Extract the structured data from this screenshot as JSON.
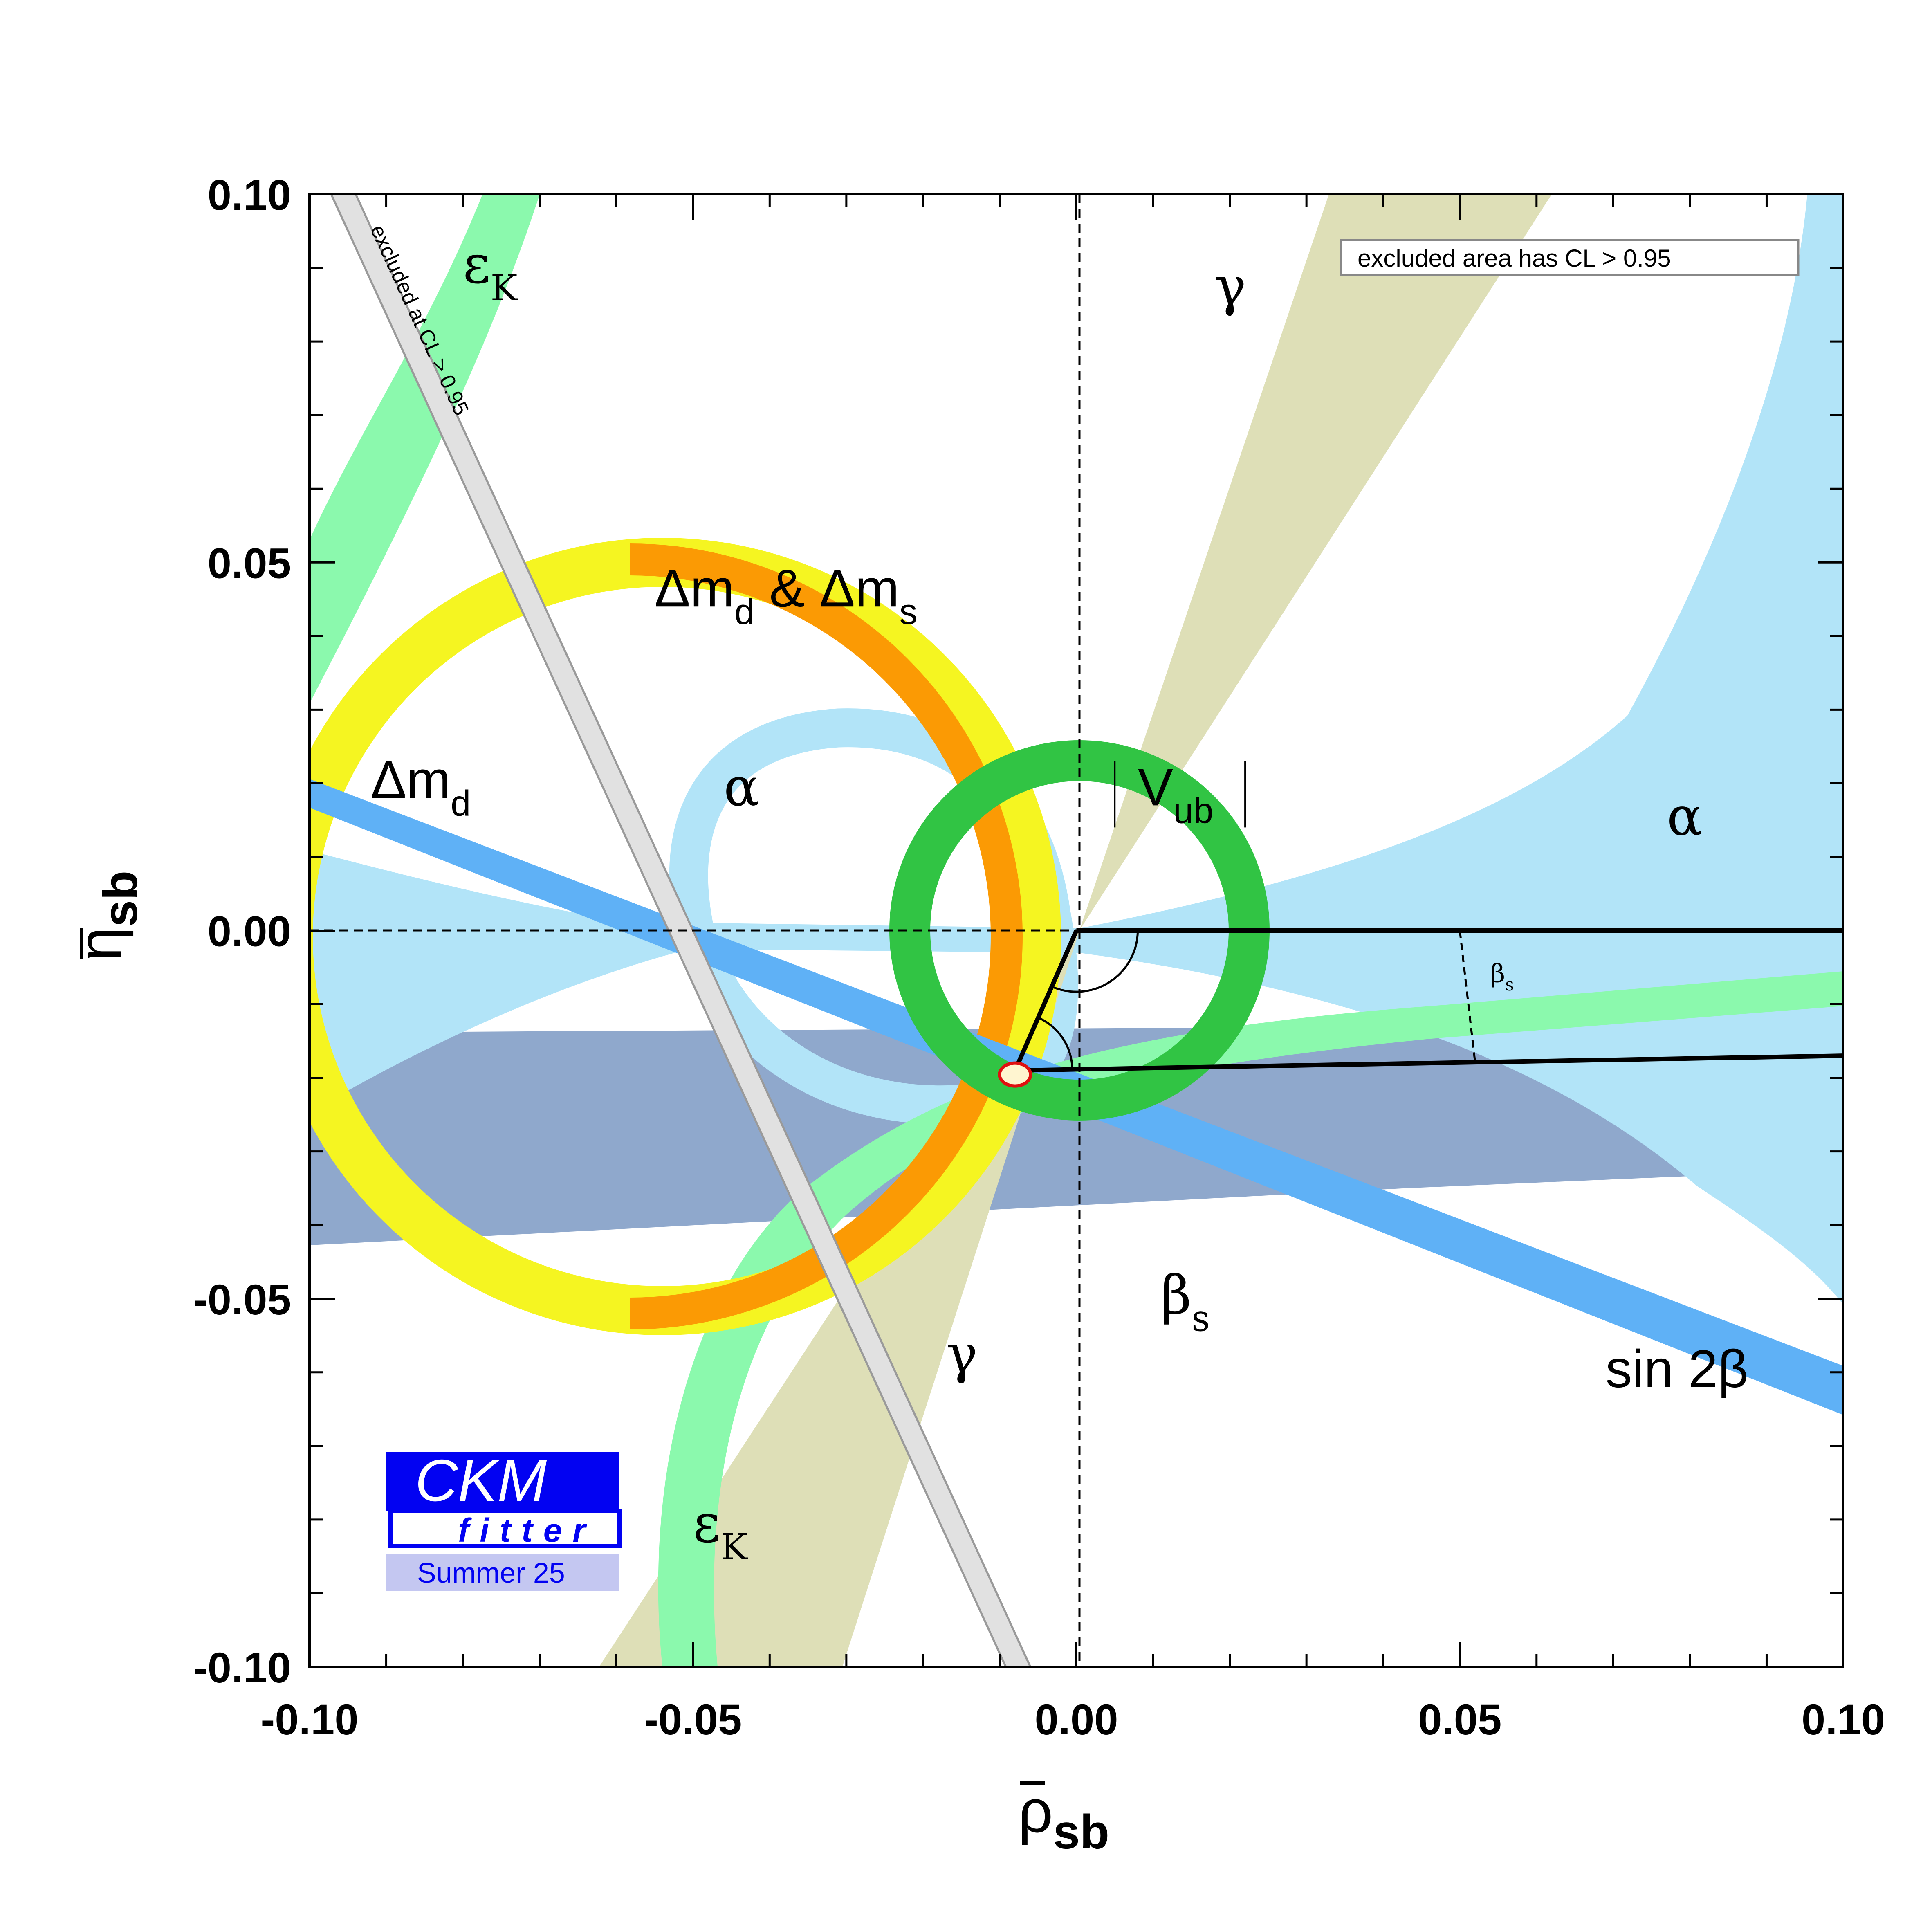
{
  "chart_data": {
    "type": "region-plot",
    "xlabel": {
      "main": "ρ",
      "sub": "sb"
    },
    "ylabel": {
      "main": "η",
      "sub": "sb"
    },
    "xlim": [
      -0.1,
      0.1
    ],
    "ylim": [
      -0.1,
      0.1
    ],
    "x_ticks": [
      -0.1,
      -0.05,
      0.0,
      0.05,
      0.1
    ],
    "x_tick_labels": [
      "-0.10",
      "-0.05",
      "0.00",
      "0.05",
      "0.10"
    ],
    "y_ticks": [
      -0.1,
      -0.05,
      0.0,
      0.05,
      0.1
    ],
    "y_tick_labels": [
      "-0.10",
      "-0.05",
      "0.00",
      "0.05",
      "0.10"
    ],
    "legend_note": "excluded area has CL > 0.95",
    "excluded_band_label": "excluded at CL > 0.95",
    "labels": [
      {
        "key": "epsK_top",
        "main": "ε",
        "sub": "K",
        "x": -0.08,
        "y": 0.088
      },
      {
        "key": "epsK_bottom",
        "main": "ε",
        "sub": "K",
        "x": -0.05,
        "y": -0.083
      },
      {
        "key": "gamma_top",
        "main": "γ",
        "sub": "",
        "x": 0.018,
        "y": 0.085
      },
      {
        "key": "gamma_bottom",
        "main": "γ",
        "sub": "",
        "x": -0.017,
        "y": -0.06
      },
      {
        "key": "dmd_dms",
        "main": "Δm",
        "sub": "d",
        "extra": " & Δm",
        "extra_sub": "s",
        "x": -0.055,
        "y": 0.044
      },
      {
        "key": "dmd",
        "main": "Δm",
        "sub": "d",
        "x": -0.092,
        "y": 0.018
      },
      {
        "key": "alpha_left",
        "main": "α",
        "sub": "",
        "x": -0.046,
        "y": 0.017
      },
      {
        "key": "alpha_right",
        "main": "α",
        "sub": "",
        "x": 0.077,
        "y": 0.013
      },
      {
        "key": "vub",
        "main": "V",
        "sub": "ub",
        "x": 0.008,
        "y": 0.017
      },
      {
        "key": "betas_small",
        "main": "β",
        "sub": "s",
        "x": 0.054,
        "y": -0.007
      },
      {
        "key": "betas",
        "main": "β",
        "sub": "s",
        "x": 0.011,
        "y": -0.052
      },
      {
        "key": "sin2beta",
        "main": "sin 2β",
        "sub": "",
        "x": 0.069,
        "y": -0.062
      }
    ],
    "triangle": {
      "apex": [
        -0.008,
        -0.019
      ],
      "vertices": [
        [
          0.0,
          0.0
        ],
        [
          -0.008,
          -0.019
        ],
        [
          0.1,
          -0.017
        ]
      ],
      "baseline": [
        [
          0.0,
          0.0
        ],
        [
          0.1,
          0.0
        ]
      ]
    },
    "colors": {
      "yellow": "#f5f521",
      "orange": "#fb9a04",
      "green_ring": "#31c444",
      "light_green": "#8bf9ad",
      "light_blue": "#b2e4f8",
      "medium_blue": "#5fb1f6",
      "slate": "#8fa8cc",
      "khaki": "#dedfb7",
      "gray_band": "#e1e1e1",
      "logo_blue": "#0202f2",
      "logo_light": "#c4c7f1"
    }
  },
  "logo": {
    "line1": "CKM",
    "line2": "fitter",
    "line3": "Summer 25"
  }
}
